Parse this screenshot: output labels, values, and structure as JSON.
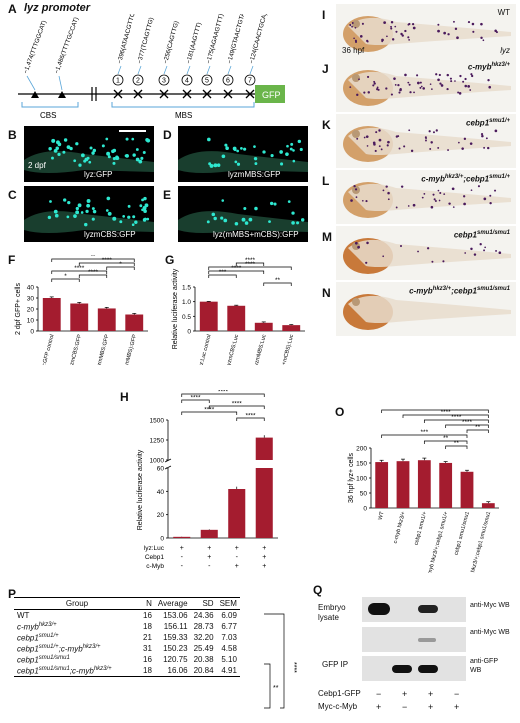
{
  "panel_A": {
    "letter": "A",
    "title": "lyz promoter",
    "cbs_sites": [
      "−1,474(TTTGGCAT)",
      "−1,486(TTTTGCCAT)"
    ],
    "mbs_sites": [
      "−396(ATAACGTTC)",
      "−377(TCAGTTG)",
      "−256(CAGTTG)",
      "−181(AAGTTT)",
      "−175(AGAAGTTT)",
      "−149(GTAACTGTA)",
      "−124(CAACTGCA)"
    ],
    "mbs_numbers": [
      "1",
      "2",
      "3",
      "4",
      "5",
      "6",
      "7"
    ],
    "cbs_label": "CBS",
    "mbs_label": "MBS",
    "gfp_label": "GFP"
  },
  "micrographs": {
    "B": {
      "letter": "B",
      "label": "lyz:GFP",
      "time": "2 dpf"
    },
    "C": {
      "letter": "C",
      "label": "lyzmCBS:GFP"
    },
    "D": {
      "letter": "D",
      "label": "lyzmMBS:GFP"
    },
    "E": {
      "letter": "E",
      "label": "lyz(mMBS+mCBS):GFP"
    }
  },
  "fish_panels": [
    {
      "letter": "I",
      "label": "WT",
      "time": "36 hpf",
      "probe": "lyz"
    },
    {
      "letter": "J",
      "label": "c-myb",
      "sup": "hkz3/+"
    },
    {
      "letter": "K",
      "label": "cebp1",
      "sup": "smu1/+"
    },
    {
      "letter": "L",
      "label": "c-myb",
      "sup": "hkz3/+",
      "label2": ";cebp1",
      "sup2": "smu1/+"
    },
    {
      "letter": "M",
      "label": "cebp1",
      "sup": "smu1/smu1"
    },
    {
      "letter": "N",
      "label": "c-myb",
      "sup": "hkz3/+",
      "label2": ";cebp1",
      "sup2": "smu1/smu1"
    }
  ],
  "chart_data": [
    {
      "panel": "F",
      "type": "bar",
      "ylabel": "2 dpf GFP+ cells",
      "ylim": [
        0,
        40
      ],
      "yticks": [
        0,
        10,
        20,
        30,
        40
      ],
      "categories": [
        "lyz:GFP control",
        "lyzmCBS:GFP",
        "lyzmMBS:GFP",
        "lyz(mCBS+mMBS):GFP"
      ],
      "values": [
        30,
        25,
        20.5,
        15
      ],
      "errors": [
        1,
        1,
        1,
        1
      ],
      "significance": [
        "*",
        "****",
        "****",
        "*",
        "****",
        "**"
      ],
      "bar_color": "#a41c2f"
    },
    {
      "panel": "G",
      "type": "bar",
      "ylabel": "Relative luciferase activity",
      "ylim": [
        0,
        1.5
      ],
      "yticks": [
        0,
        0.5,
        1.0,
        1.5
      ],
      "ytick_labels": [
        "0",
        "0.5",
        "1.0",
        "1.5"
      ],
      "categories": [
        "lyz:Luc control",
        "lyzmCBS:Luc",
        "lyzmMBS:Luc",
        "lyz(mMBS+mCBS):Luc"
      ],
      "values": [
        1.0,
        0.86,
        0.28,
        0.2
      ],
      "errors": [
        0.01,
        0.02,
        0.03,
        0.02
      ],
      "significance": [
        "***",
        "****",
        "****",
        "****",
        "**"
      ],
      "bar_color": "#a41c2f"
    },
    {
      "panel": "H",
      "type": "bar",
      "ylabel": "Relative luciferase activity",
      "yaxis_break": true,
      "yticks": [
        0,
        20,
        40,
        60,
        1000,
        1250,
        1500
      ],
      "rows": [
        {
          "label": "lyz:Luc",
          "values": [
            "+",
            "+",
            "+",
            "+"
          ]
        },
        {
          "label": "Cebp1",
          "values": [
            "-",
            "+",
            "-",
            "+"
          ]
        },
        {
          "label": "c-Myb",
          "values": [
            "-",
            "-",
            "+",
            "+"
          ]
        }
      ],
      "values": [
        1,
        7,
        42,
        1280
      ],
      "errors": [
        0.2,
        0.5,
        2,
        30
      ],
      "significance": [
        "****",
        "****",
        "****",
        "****",
        "****"
      ],
      "bar_color": "#a41c2f"
    },
    {
      "panel": "O",
      "type": "bar",
      "ylabel": "36 hpf lyz+ cells",
      "ylim": [
        0,
        200
      ],
      "yticks": [
        0,
        50,
        100,
        150,
        200
      ],
      "categories": [
        "WT",
        "c-myb hkz3/+",
        "cebp1 smu1/+",
        "c-myb hkz3/+;cebp1 smu1/+",
        "cebp1 smu1/smu1",
        "c-myb hkz3/+;cebp1 smu1/smu1"
      ],
      "values": [
        153.06,
        156.11,
        159.33,
        150.23,
        120.75,
        16.06
      ],
      "errors": [
        6.09,
        6.77,
        7.03,
        4.58,
        5.1,
        4.91
      ],
      "significance": [
        "****",
        "****",
        "****",
        "****",
        "**",
        "***",
        "**",
        "**"
      ],
      "bar_color": "#a41c2f"
    }
  ],
  "table_P": {
    "letter": "P",
    "headers": [
      "Group",
      "N",
      "Average",
      "SD",
      "SEM"
    ],
    "rows": [
      {
        "group": "WT",
        "n": "16",
        "average": "153.06",
        "sd": "24.36",
        "sem": "6.09"
      },
      {
        "group": "c-myb",
        "sup": "hkz3/+",
        "n": "18",
        "average": "156.11",
        "sd": "28.73",
        "sem": "6.77"
      },
      {
        "group": "cebp1",
        "sup": "smu1/+",
        "n": "21",
        "average": "159.33",
        "sd": "32.20",
        "sem": "7.03"
      },
      {
        "group": "cebp1",
        "sup": "smu1/+",
        "group2": ";c-myb",
        "sup2": "hkz3/+",
        "n": "31",
        "average": "150.23",
        "sd": "25.49",
        "sem": "4.58"
      },
      {
        "group": "cebp1",
        "sup": "smu1/smu1",
        "n": "16",
        "average": "120.75",
        "sd": "20.38",
        "sem": "5.10"
      },
      {
        "group": "cebp1",
        "sup": "smu1/smu1",
        "group2": ";c-myb",
        "sup2": "hkz3/+",
        "n": "18",
        "average": "16.06",
        "sd": "20.84",
        "sem": "4.91"
      }
    ],
    "significance": [
      "**",
      "****"
    ]
  },
  "panel_Q": {
    "letter": "Q",
    "embryo_lysate": "Embryo lysate",
    "gfp_ip": "GFP IP",
    "wb_labels": [
      "anti-Myc WB",
      "anti-Myc WB",
      "anti-GFP WB"
    ],
    "rows": [
      {
        "label": "Cebp1-GFP",
        "values": [
          "−",
          "+",
          "+",
          "−"
        ]
      },
      {
        "label": "Myc-c-Myb",
        "values": [
          "+",
          "−",
          "+",
          "+"
        ]
      }
    ]
  }
}
